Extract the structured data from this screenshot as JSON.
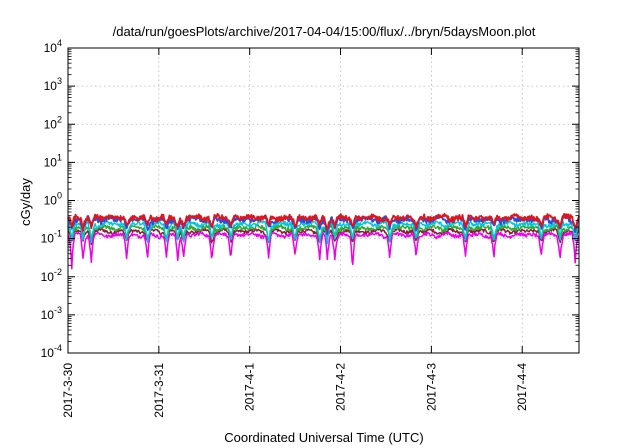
{
  "chart_data": {
    "type": "line",
    "title": "/data/run/goesPlots/archive/2017-04-04/15:00/flux/../bryn/5daysMoon.plot",
    "xlabel": "Coordinated Universal Time (UTC)",
    "ylabel": "cGy/day",
    "yscale": "log",
    "ylim_exponents": [
      -4,
      4
    ],
    "y_ticks": [
      {
        "base": "10",
        "exp": "4"
      },
      {
        "base": "10",
        "exp": "3"
      },
      {
        "base": "10",
        "exp": "2"
      },
      {
        "base": "10",
        "exp": "1"
      },
      {
        "base": "10",
        "exp": "0"
      },
      {
        "base": "10",
        "exp": "-1"
      },
      {
        "base": "10",
        "exp": "-2"
      },
      {
        "base": "10",
        "exp": "-3"
      },
      {
        "base": "10",
        "exp": "-4"
      }
    ],
    "x_range": [
      "2017-03-30T00:00",
      "2017-04-04T15:00"
    ],
    "x_ticks": [
      "2017-3-30",
      "2017-3-31",
      "2017-4-1",
      "2017-4-2",
      "2017-4-3",
      "2017-4-4"
    ],
    "grid": true,
    "legend": "none",
    "series": [
      {
        "color": "#e0161c",
        "base_value": 0.36,
        "noise": 0.15
      },
      {
        "color": "#2b4ce0",
        "base_value": 0.32,
        "noise": 0.15
      },
      {
        "color": "#00c8d8",
        "base_value": 0.24,
        "noise": 0.12
      },
      {
        "color": "#2faa2f",
        "base_value": 0.19,
        "noise": 0.12
      },
      {
        "color": "#8a1f3c",
        "base_value": 0.155,
        "noise": 0.1
      },
      {
        "color": "#ee00ee",
        "base_value": 0.125,
        "noise": 0.1
      }
    ],
    "dips": [
      {
        "t": "2017-03-30T01:00",
        "value": 0.04
      },
      {
        "t": "2017-03-30T04:00",
        "value": 0.08
      },
      {
        "t": "2017-03-30T06:10",
        "value": 0.07
      },
      {
        "t": "2017-03-30T15:30",
        "value": 0.08
      },
      {
        "t": "2017-03-30T21:00",
        "value": 0.07
      },
      {
        "t": "2017-03-31T02:00",
        "value": 0.08
      },
      {
        "t": "2017-03-31T05:00",
        "value": 0.07
      },
      {
        "t": "2017-03-31T06:30",
        "value": 0.08
      },
      {
        "t": "2017-03-31T14:00",
        "value": 0.09
      },
      {
        "t": "2017-03-31T19:00",
        "value": 0.08
      },
      {
        "t": "2017-04-01T05:00",
        "value": 0.09
      },
      {
        "t": "2017-04-01T12:00",
        "value": 0.09
      },
      {
        "t": "2017-04-01T18:30",
        "value": 0.07
      },
      {
        "t": "2017-04-01T20:30",
        "value": 0.07
      },
      {
        "t": "2017-04-01T22:30",
        "value": 0.085
      },
      {
        "t": "2017-04-02T03:10",
        "value": 0.03
      },
      {
        "t": "2017-04-02T13:00",
        "value": 0.09
      },
      {
        "t": "2017-04-02T20:00",
        "value": 0.09
      },
      {
        "t": "2017-04-03T09:00",
        "value": 0.09
      },
      {
        "t": "2017-04-03T16:30",
        "value": 0.08
      },
      {
        "t": "2017-04-04T05:00",
        "value": 0.09
      },
      {
        "t": "2017-04-04T10:00",
        "value": 0.09
      },
      {
        "t": "2017-04-04T14:00",
        "value": 0.07
      }
    ]
  }
}
